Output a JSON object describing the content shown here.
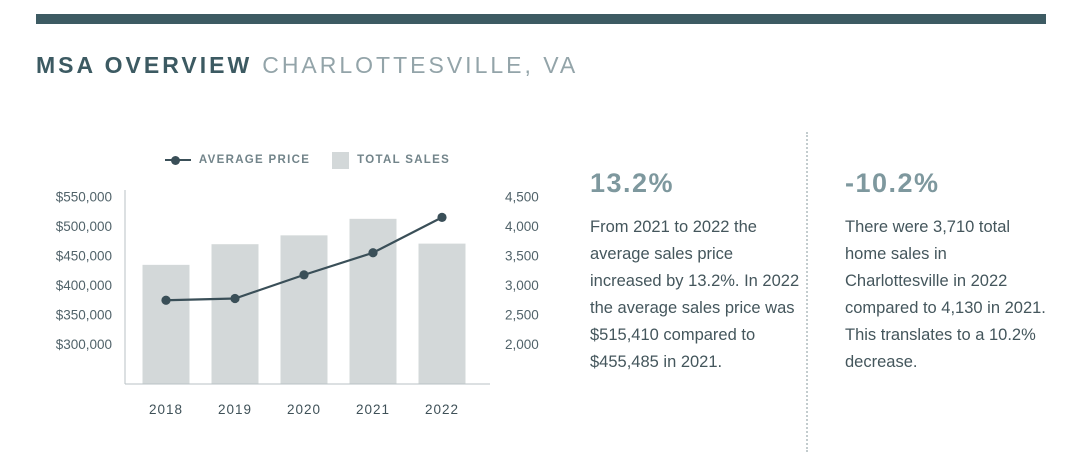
{
  "header": {
    "title_bold": "MSA OVERVIEW",
    "title_light": "CHARLOTTESVILLE, VA"
  },
  "legend": {
    "average_price_label": "AVERAGE PRICE",
    "total_sales_label": "TOTAL SALES"
  },
  "chart_data": {
    "type": "combo",
    "categories": [
      "2018",
      "2019",
      "2020",
      "2021",
      "2022"
    ],
    "series": [
      {
        "name": "AVERAGE PRICE",
        "type": "line",
        "axis": "left",
        "values": [
          375000,
          378000,
          418000,
          455485,
          515410
        ],
        "color": "#3a4f58"
      },
      {
        "name": "TOTAL SALES",
        "type": "bar",
        "axis": "right",
        "values": [
          3350,
          3700,
          3850,
          4130,
          3710
        ],
        "color": "#d3d8d9"
      }
    ],
    "left_axis": {
      "min": 300000,
      "max": 550000,
      "tick_labels": [
        "$550,000",
        "$500,000",
        "$450,000",
        "$400,000",
        "$350,000",
        "$300,000"
      ]
    },
    "right_axis": {
      "min": 2000,
      "max": 4500,
      "tick_labels": [
        "4,500",
        "4,000",
        "3,500",
        "3,000",
        "2,500",
        "2,000"
      ]
    },
    "grid": false,
    "legend_position": "top",
    "title": "MSA OVERVIEW CHARLOTTESVILLE, VA"
  },
  "stats": [
    {
      "value": "13.2%",
      "text": "From 2021 to 2022 the average sales price increased by 13.2%. In 2022 the average sales price was $515,410 compared to $455,485 in 2021."
    },
    {
      "value": "-10.2%",
      "text": "There were 3,710 total home sales in Charlottesville in 2022 compared to 4,130 in 2021. This translates to a 10.2% decrease."
    }
  ],
  "colors": {
    "accent_dark": "#3d5b63",
    "bar": "#d3d8d9",
    "line": "#3a4f58",
    "axis_line": "#b9c2c5",
    "tick_text": "#51636a",
    "category_text": "#3f5158"
  }
}
